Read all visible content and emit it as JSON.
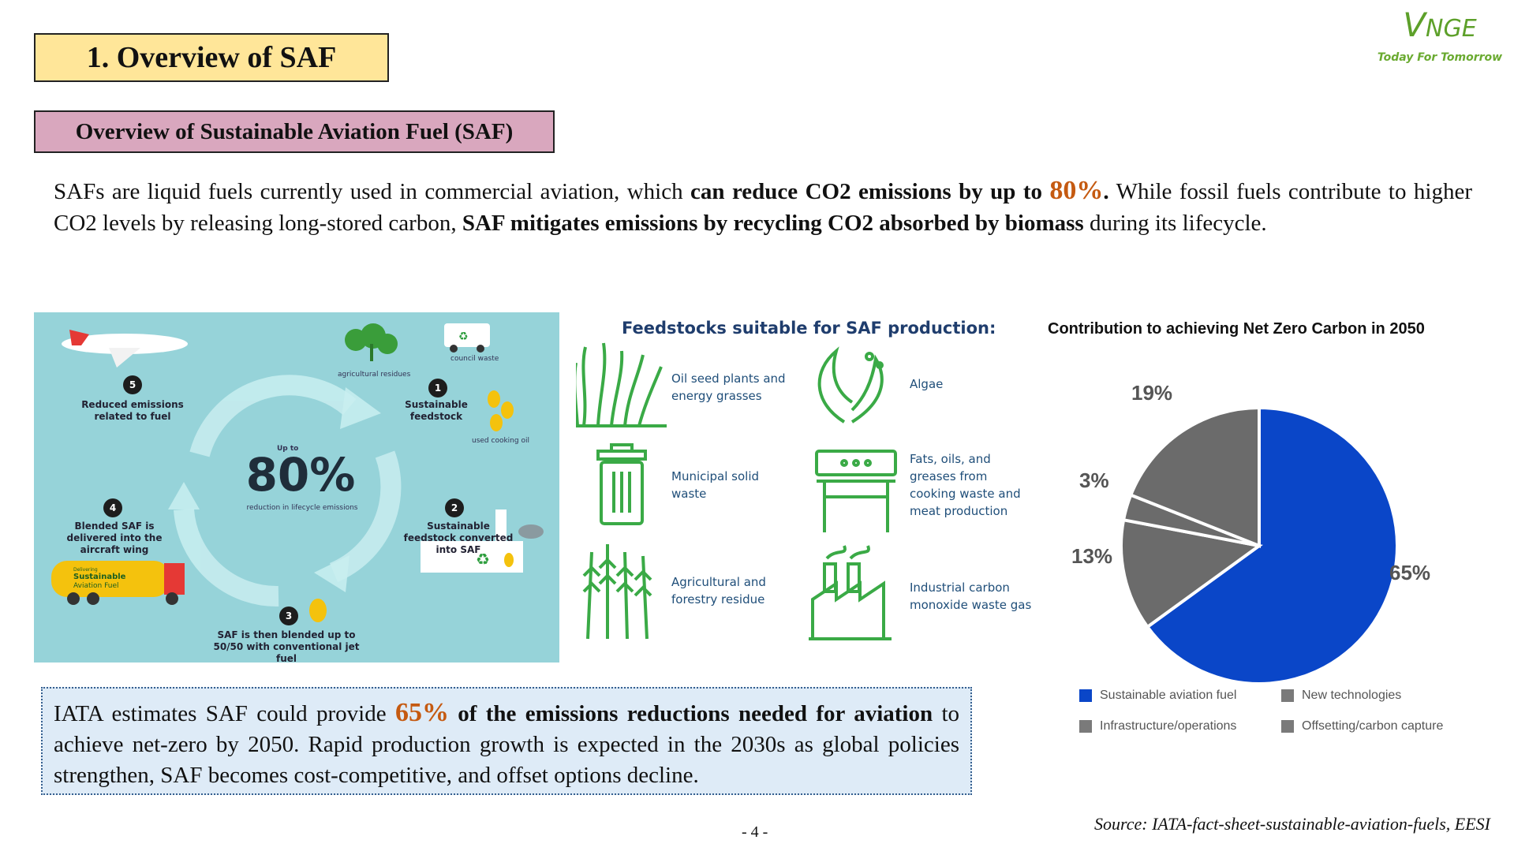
{
  "main_title": "1. Overview of SAF",
  "sub_title": "Overview of Sustainable Aviation Fuel (SAF)",
  "logo": {
    "mark": "NGE",
    "mark_initial": "V",
    "tagline": "Today For Tomorrow",
    "color": "#5da02a"
  },
  "intro": {
    "p1": "SAFs are liquid fuels currently used in commercial aviation, which ",
    "b1": "can reduce CO2 emissions by up to ",
    "pct": "80%",
    "b1_end": ".",
    "p2": " While fossil fuels contribute to higher CO2 levels by releasing long-stored carbon, ",
    "b2": "SAF mitigates emissions by recycling CO2 absorbed by biomass",
    "p3": " during its lifecycle."
  },
  "cycle": {
    "center_top": "Up to",
    "center_value": "80%",
    "center_bottom": "reduction in lifecycle emissions",
    "steps": [
      {
        "num": "1",
        "label": "Sustainable feedstock"
      },
      {
        "num": "2",
        "label": "Sustainable feedstock converted into SAF"
      },
      {
        "num": "3",
        "label": "SAF is then blended up to 50/50 with conventional jet fuel"
      },
      {
        "num": "4",
        "label": "Blended SAF is delivered into the aircraft wing"
      },
      {
        "num": "5",
        "label": "Reduced emissions related to fuel"
      }
    ],
    "small_labels": {
      "agri": "agricultural residues",
      "council": "council waste",
      "oil": "used cooking oil"
    },
    "truck_text": {
      "line1": "Delivering",
      "line2": "Sustainable",
      "line3": "Aviation Fuel"
    }
  },
  "feedstocks": {
    "title": "Feedstocks suitable for SAF production:",
    "items": [
      {
        "icon": "grass-icon",
        "label": "Oil seed plants and energy grasses"
      },
      {
        "icon": "algae-icon",
        "label": "Algae"
      },
      {
        "icon": "trash-bin-icon",
        "label": "Municipal solid waste"
      },
      {
        "icon": "grill-icon",
        "label": "Fats, oils, and greases from cooking waste and meat production"
      },
      {
        "icon": "wheat-icon",
        "label": "Agricultural and forestry residue"
      },
      {
        "icon": "factory-icon",
        "label": "Industrial carbon monoxide waste gas"
      }
    ],
    "icon_color": "#3aaa46"
  },
  "chart_data": {
    "type": "pie",
    "title": "Contribution to achieving Net Zero Carbon in 2050",
    "slices": [
      {
        "label": "Sustainable aviation fuel",
        "value": 65,
        "display": "65%",
        "color": "#0a46c8"
      },
      {
        "label": "Offsetting/carbon capture",
        "value": 13,
        "display": "13%",
        "color": "#6b6b6b"
      },
      {
        "label": "Infrastructure/operations",
        "value": 3,
        "display": "3%",
        "color": "#6b6b6b"
      },
      {
        "label": "New technologies",
        "value": 19,
        "display": "19%",
        "color": "#6b6b6b"
      }
    ],
    "legend": [
      {
        "label": "Sustainable aviation fuel",
        "color": "#0a46c8"
      },
      {
        "label": "New technologies",
        "color": "#7a7a7a"
      },
      {
        "label": "Infrastructure/operations",
        "color": "#7a7a7a"
      },
      {
        "label": "Offsetting/carbon capture",
        "color": "#7a7a7a"
      }
    ],
    "legend_position": "bottom"
  },
  "iata": {
    "p1": "IATA estimates SAF could provide ",
    "pct": "65%",
    "b1": " of the emissions reductions needed for aviation",
    "p2": " to achieve net-zero by 2050. Rapid production growth is expected in the 2030s as global policies strengthen, SAF becomes cost-competitive, and offset options decline."
  },
  "source": "Source: IATA-fact-sheet-sustainable-aviation-fuels, EESI",
  "page_number": "- 4 -"
}
